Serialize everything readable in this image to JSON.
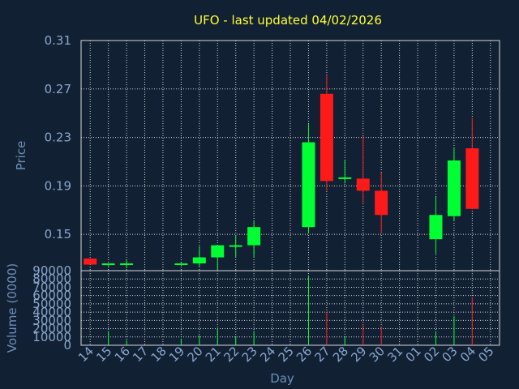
{
  "chart_data": {
    "type": "candlestick",
    "title": "UFO - last updated 04/02/2026",
    "xlabel": "Day",
    "price_panel": {
      "ylabel": "Price",
      "ylim": [
        0.12,
        0.31
      ],
      "yticks": [
        "0.31",
        "0.27",
        "0.23",
        "0.19",
        "0.15"
      ],
      "grid": true
    },
    "volume_panel": {
      "ylabel": "Volume (0000)",
      "ylim": [
        0,
        90000
      ],
      "yticks": [
        "90000",
        "80000",
        "70000",
        "60000",
        "50000",
        "40000",
        "30000",
        "20000",
        "10000",
        "0"
      ],
      "grid": true
    },
    "categories": [
      "14",
      "15",
      "16",
      "17",
      "18",
      "19",
      "20",
      "21",
      "22",
      "23",
      "24",
      "25",
      "26",
      "27",
      "28",
      "29",
      "30",
      "31",
      "01",
      "02",
      "03",
      "04",
      "05"
    ],
    "candles": [
      {
        "day": "14",
        "open": 0.13,
        "high": 0.13,
        "low": 0.125,
        "close": 0.125,
        "volume": null
      },
      {
        "day": "15",
        "open": 0.125,
        "high": 0.126,
        "low": 0.123,
        "close": 0.126,
        "volume": 17000
      },
      {
        "day": "16",
        "open": 0.125,
        "high": 0.129,
        "low": 0.122,
        "close": 0.126,
        "volume": 6000
      },
      {
        "day": "17",
        "open": null,
        "high": null,
        "low": null,
        "close": null,
        "volume": null
      },
      {
        "day": "18",
        "open": null,
        "high": null,
        "low": null,
        "close": null,
        "volume": null
      },
      {
        "day": "19",
        "open": 0.125,
        "high": 0.127,
        "low": 0.124,
        "close": 0.126,
        "volume": 8000
      },
      {
        "day": "20",
        "open": 0.126,
        "high": 0.14,
        "low": 0.123,
        "close": 0.131,
        "volume": 12000
      },
      {
        "day": "21",
        "open": 0.131,
        "high": 0.141,
        "low": 0.121,
        "close": 0.141,
        "volume": 20000
      },
      {
        "day": "22",
        "open": 0.14,
        "high": 0.149,
        "low": 0.131,
        "close": 0.141,
        "volume": 10000
      },
      {
        "day": "23",
        "open": 0.141,
        "high": 0.161,
        "low": 0.131,
        "close": 0.156,
        "volume": 17000
      },
      {
        "day": "24",
        "open": null,
        "high": null,
        "low": null,
        "close": null,
        "volume": null
      },
      {
        "day": "25",
        "open": null,
        "high": null,
        "low": null,
        "close": null,
        "volume": null
      },
      {
        "day": "26",
        "open": 0.156,
        "high": 0.241,
        "low": 0.151,
        "close": 0.226,
        "volume": 83000
      },
      {
        "day": "27",
        "open": 0.266,
        "high": 0.281,
        "low": 0.186,
        "close": 0.194,
        "volume": 40000
      },
      {
        "day": "28",
        "open": 0.196,
        "high": 0.211,
        "low": 0.192,
        "close": 0.197,
        "volume": 10000
      },
      {
        "day": "29",
        "open": 0.196,
        "high": 0.231,
        "low": 0.176,
        "close": 0.186,
        "volume": 25000
      },
      {
        "day": "30",
        "open": 0.186,
        "high": 0.201,
        "low": 0.151,
        "close": 0.166,
        "volume": 22000
      },
      {
        "day": "31",
        "open": null,
        "high": null,
        "low": null,
        "close": null,
        "volume": null
      },
      {
        "day": "01",
        "open": null,
        "high": null,
        "low": null,
        "close": null,
        "volume": null
      },
      {
        "day": "02",
        "open": 0.146,
        "high": 0.181,
        "low": 0.134,
        "close": 0.166,
        "volume": 17000
      },
      {
        "day": "03",
        "open": 0.165,
        "high": 0.221,
        "low": 0.161,
        "close": 0.211,
        "volume": 35000
      },
      {
        "day": "04",
        "open": 0.221,
        "high": 0.246,
        "low": 0.171,
        "close": 0.171,
        "volume": 58000
      },
      {
        "day": "05",
        "open": null,
        "high": null,
        "low": null,
        "close": null,
        "volume": null
      }
    ],
    "colors": {
      "up": "#00ff33",
      "down": "#ff1a1a",
      "background": "#112033",
      "grid": "#d8d8d8",
      "title": "#ffff33",
      "tick": "#8aa7cc",
      "label": "#6e8fb8"
    }
  }
}
